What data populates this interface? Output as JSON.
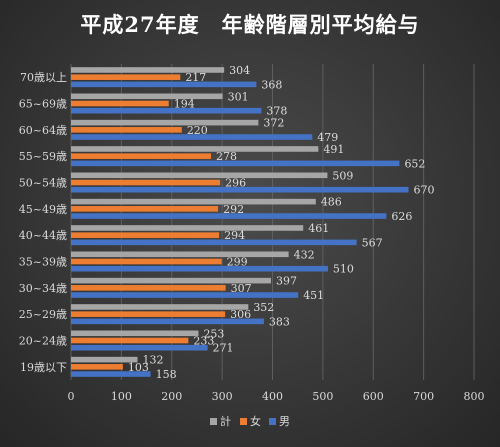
{
  "chart_data": {
    "type": "bar",
    "orientation": "horizontal",
    "title": "平成27年度　年齢階層別平均給与",
    "categories": [
      "70歳以上",
      "65~69歳",
      "60~64歳",
      "55~59歳",
      "50~54歳",
      "45~49歳",
      "40~44歳",
      "35~39歳",
      "30~34歳",
      "25~29歳",
      "20~24歳",
      "19歳以下"
    ],
    "series": [
      {
        "name": "計",
        "color": "#a6a6a6",
        "values": [
          304,
          301,
          372,
          491,
          509,
          486,
          461,
          432,
          397,
          352,
          253,
          132
        ]
      },
      {
        "name": "女",
        "color": "#ed7d31",
        "values": [
          217,
          194,
          220,
          278,
          296,
          292,
          294,
          299,
          307,
          306,
          233,
          103
        ]
      },
      {
        "name": "男",
        "color": "#4472c4",
        "values": [
          368,
          378,
          479,
          652,
          670,
          626,
          567,
          510,
          451,
          383,
          271,
          158
        ]
      }
    ],
    "xlim": [
      0,
      800
    ],
    "xticks": [
      0,
      100,
      200,
      300,
      400,
      500,
      600,
      700,
      800
    ],
    "grid": true,
    "legend": "bottom",
    "data_labels": true
  }
}
